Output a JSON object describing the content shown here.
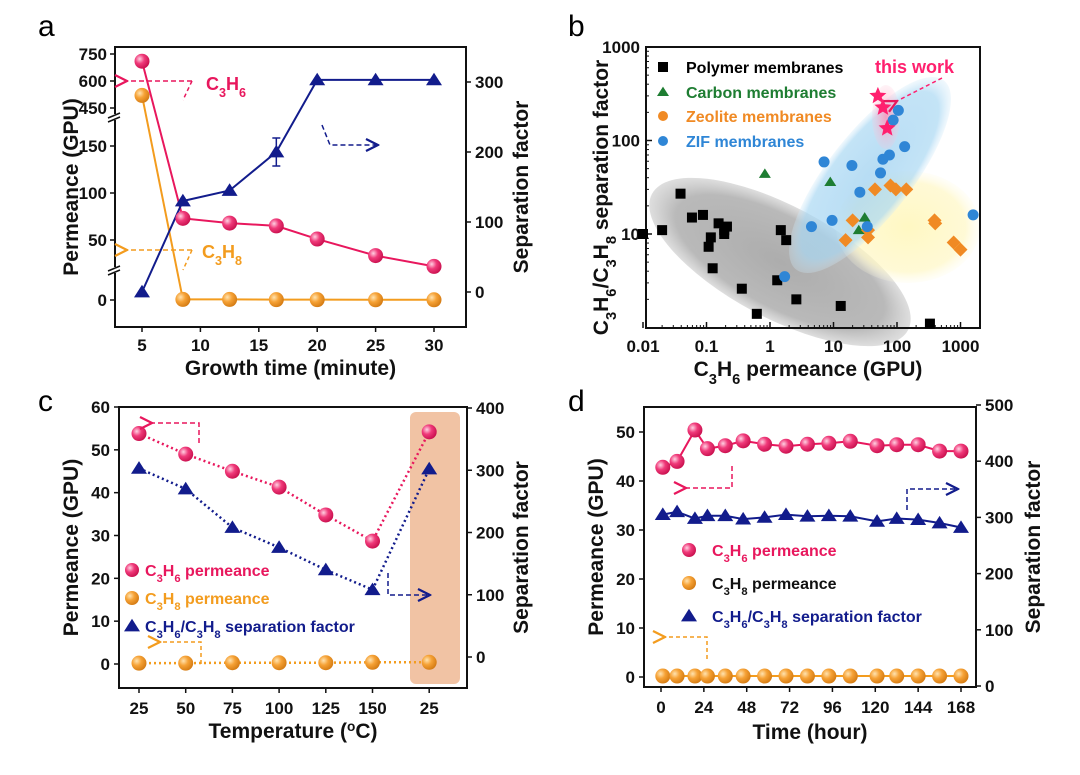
{
  "figure": {
    "panel_labels": [
      "a",
      "b",
      "c",
      "d"
    ]
  },
  "colors": {
    "c3h6": "#e8175d",
    "c3h8": "#f39c1e",
    "sf": "#121c8c",
    "polymer": "#000000",
    "carbon": "#1e7d32",
    "zeolite": "#f08a24",
    "zif": "#2f86d6",
    "this_work": "#ff1f6e",
    "highlight_band": "#eeb994"
  },
  "chart_data": [
    {
      "panel": "a",
      "type": "line",
      "title": "",
      "xlabel": "Growth time (minute)",
      "ylabel": "Permeance (GPU)",
      "y2label": "Separation factor",
      "xlim": [
        2,
        33
      ],
      "xticks": [
        5,
        10,
        15,
        20,
        25,
        30
      ],
      "yticks_left": [
        0,
        50,
        100,
        150,
        450,
        600,
        750
      ],
      "y_axis_breaks": [
        [
          20,
          40
        ],
        [
          170,
          430
        ]
      ],
      "yticks_right": [
        0,
        100,
        200,
        300
      ],
      "y2lim": [
        -50,
        350
      ],
      "x": [
        5,
        8.5,
        12.5,
        16.5,
        20,
        25,
        30
      ],
      "series": [
        {
          "name": "C3H6",
          "axis": "left",
          "values": [
            710,
            73,
            68,
            65,
            51,
            37,
            28
          ]
        },
        {
          "name": "C3H8",
          "axis": "left",
          "values": [
            520,
            0.5,
            0.5,
            0.3,
            0.3,
            0.2,
            0.2
          ]
        },
        {
          "name": "Separation factor",
          "axis": "right",
          "values": [
            0,
            130,
            145,
            200,
            303,
            303,
            303
          ],
          "error": [
            0,
            0,
            0,
            20,
            0,
            0,
            0
          ]
        }
      ],
      "annotations": [
        {
          "text": "C3H6",
          "arrow": "left",
          "sub": [
            "3",
            "6"
          ]
        },
        {
          "text": "C3H8",
          "arrow": "left",
          "sub": [
            "3",
            "8"
          ]
        },
        {
          "text": "",
          "arrow": "right"
        }
      ]
    },
    {
      "panel": "b",
      "type": "scatter",
      "xscale": "log",
      "yscale": "log",
      "xlabel": "C3H6 permeance (GPU)",
      "ylabel": "C3H6/C3H8 separation factor",
      "xlim": [
        0.01,
        2000
      ],
      "ylim": [
        1,
        1000
      ],
      "xticks": [
        "0.01",
        "0.1",
        "1",
        "10",
        "100",
        "1000"
      ],
      "yticks": [
        "10",
        "100",
        "1000"
      ],
      "legend_position": "top-left",
      "series": [
        {
          "name": "Polymer membranes",
          "marker": "square",
          "points": [
            [
              0.01,
              10
            ],
            [
              0.02,
              11
            ],
            [
              0.039,
              27
            ],
            [
              0.059,
              15
            ],
            [
              0.088,
              16
            ],
            [
              0.155,
              13
            ],
            [
              0.19,
              11
            ],
            [
              0.21,
              12
            ],
            [
              0.19,
              10
            ],
            [
              0.117,
              9.2
            ],
            [
              0.108,
              7.3
            ],
            [
              0.125,
              4.3
            ],
            [
              1.48,
              11
            ],
            [
              1.8,
              8.6
            ],
            [
              1.3,
              3.2
            ],
            [
              0.36,
              2.6
            ],
            [
              0.62,
              1.4
            ],
            [
              2.6,
              2.0
            ],
            [
              13,
              1.7
            ],
            [
              330,
              1.1
            ]
          ]
        },
        {
          "name": "Carbon membranes",
          "marker": "triangle",
          "points": [
            [
              0.83,
              44
            ],
            [
              8.9,
              36
            ],
            [
              31,
              15
            ],
            [
              25,
              11
            ]
          ]
        },
        {
          "name": "Zeolite membranes",
          "marker": "diamond",
          "points": [
            [
              45,
              30
            ],
            [
              79,
              33
            ],
            [
              96,
              30
            ],
            [
              140,
              30
            ],
            [
              20,
              14
            ],
            [
              35,
              11
            ],
            [
              35,
              9.2
            ],
            [
              15.5,
              8.6
            ],
            [
              390,
              14
            ],
            [
              400,
              13
            ],
            [
              780,
              8.1
            ],
            [
              1000,
              6.8
            ]
          ]
        },
        {
          "name": "ZIF membranes",
          "marker": "circle",
          "points": [
            [
              105,
              210
            ],
            [
              87,
              165
            ],
            [
              132,
              86
            ],
            [
              76,
              70
            ],
            [
              60,
              63
            ],
            [
              7.1,
              59
            ],
            [
              19.5,
              54
            ],
            [
              55,
              45
            ],
            [
              26,
              28
            ],
            [
              9.5,
              14
            ],
            [
              4.5,
              12
            ],
            [
              34,
              12
            ],
            [
              1580,
              16
            ],
            [
              1.7,
              3.5
            ]
          ]
        },
        {
          "name": "this work",
          "marker": "star",
          "points": [
            [
              50,
              300
            ],
            [
              60,
              225
            ],
            [
              70,
              135
            ]
          ]
        }
      ],
      "annotations": [
        {
          "text": "this work",
          "arrow": "down-left"
        }
      ]
    },
    {
      "panel": "c",
      "type": "line",
      "xlabel": "Temperature (oC)",
      "ylabel": "Permeance (GPU)",
      "y2label": "Separation factor",
      "categories": [
        "25",
        "50",
        "75",
        "100",
        "125",
        "150",
        "25"
      ],
      "ylim": [
        -5,
        60
      ],
      "yticks_left": [
        0,
        10,
        20,
        30,
        40,
        50,
        60
      ],
      "y2lim": [
        -50,
        400
      ],
      "yticks_right": [
        0,
        100,
        200,
        300,
        400
      ],
      "series": [
        {
          "name": "C3H6 permeance",
          "axis": "left",
          "values": [
            53.8,
            49.0,
            45.0,
            41.3,
            34.8,
            28.7,
            54.2
          ]
        },
        {
          "name": "C3H8 permeance",
          "axis": "left",
          "values": [
            0.2,
            0.2,
            0.3,
            0.3,
            0.3,
            0.4,
            0.4
          ]
        },
        {
          "name": "C3H6/C3H8 separation factor",
          "axis": "right",
          "values": [
            303,
            270,
            208,
            176,
            140,
            108,
            302
          ]
        }
      ],
      "legend": [
        "C3H6 permeance",
        "C3H8 permeance",
        "C3H6/C3H8 separation factor"
      ],
      "legend_position": "center-left",
      "highlight_band_category_index": 6
    },
    {
      "panel": "d",
      "type": "line",
      "xlabel": "Time (hour)",
      "ylabel": "Permeance (GPU)",
      "y2label": "Separation factor",
      "xlim": [
        -4,
        176
      ],
      "xticks": [
        0,
        24,
        48,
        72,
        96,
        120,
        144,
        168
      ],
      "ylim": [
        -2,
        55
      ],
      "yticks_left": [
        0,
        10,
        20,
        30,
        40,
        50
      ],
      "y2lim": [
        0,
        500
      ],
      "yticks_right": [
        0,
        100,
        200,
        300,
        400,
        500
      ],
      "x": [
        1,
        9,
        19,
        26,
        36,
        46,
        58,
        70,
        82,
        94,
        106,
        121,
        132,
        144,
        156,
        168
      ],
      "series": [
        {
          "name": "C3H6 permeance",
          "axis": "left",
          "values": [
            42.8,
            44.0,
            50.4,
            46.6,
            47.2,
            48.2,
            47.5,
            47.1,
            47.5,
            47.7,
            48.1,
            47.2,
            47.4,
            47.4,
            46.1,
            46.1
          ]
        },
        {
          "name": "C3H8 permeance",
          "axis": "left",
          "values": [
            0.2,
            0.2,
            0.2,
            0.2,
            0.2,
            0.2,
            0.2,
            0.2,
            0.2,
            0.2,
            0.2,
            0.2,
            0.2,
            0.2,
            0.2,
            0.2
          ]
        },
        {
          "name": "C3H6/C3H8 separation factor",
          "axis": "right",
          "values": [
            305,
            310,
            298,
            303,
            303,
            297,
            300,
            305,
            302,
            303,
            302,
            293,
            298,
            296,
            290,
            282
          ]
        }
      ],
      "legend": [
        "C3H6 permeance",
        "C3H8 permeance",
        "C3H6/C3H8 separation factor"
      ],
      "legend_position": "center-left"
    }
  ]
}
